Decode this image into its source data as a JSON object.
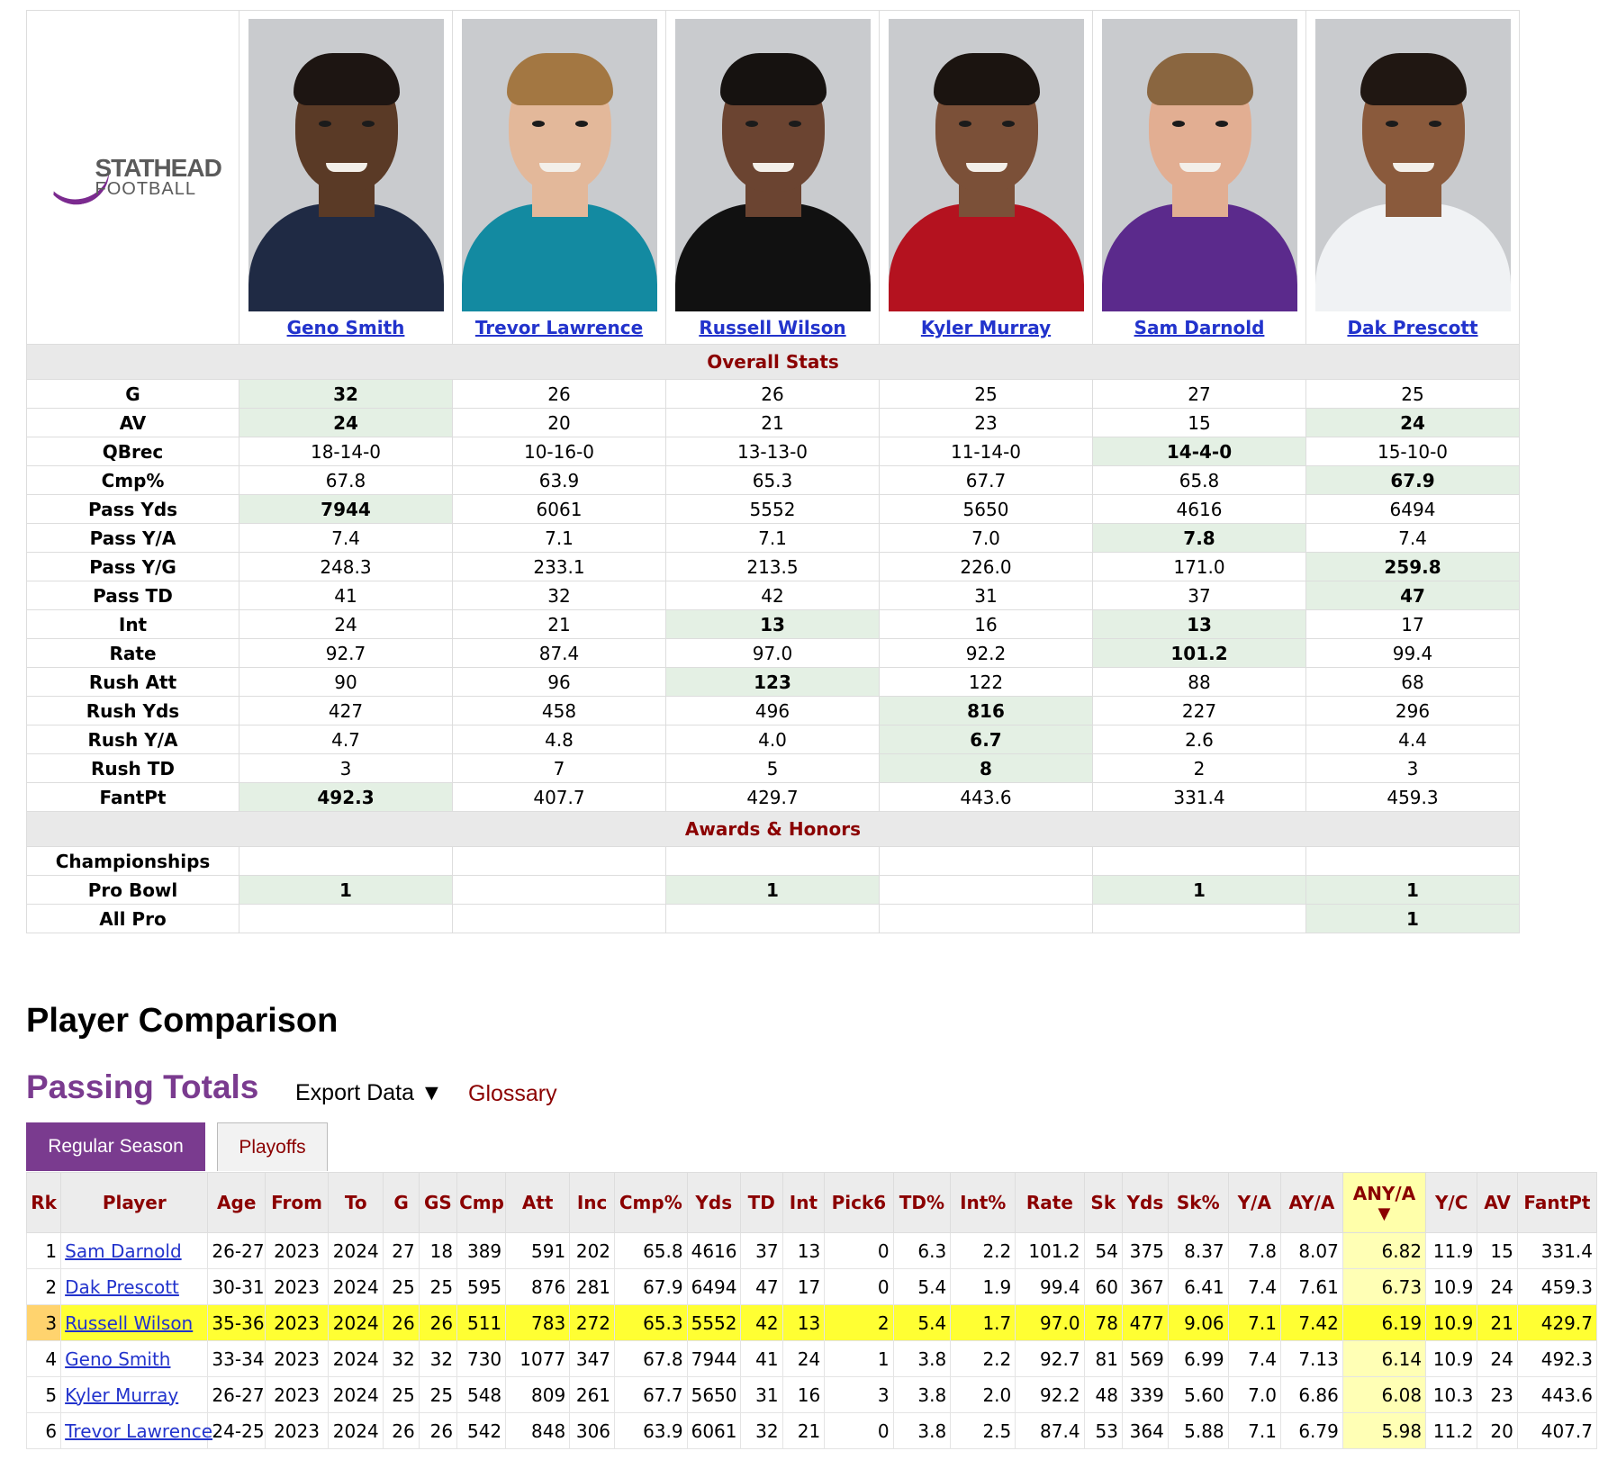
{
  "logo": {
    "line1": "STATHEAD",
    "line2": "FOOTBALL"
  },
  "players": [
    {
      "name": "Geno Smith",
      "colors": {
        "skin": "#5a3a26",
        "hair": "#1d1512",
        "jersey": "#1f2a44"
      }
    },
    {
      "name": "Trevor Lawrence",
      "colors": {
        "skin": "#e3b89a",
        "hair": "#a37742",
        "jersey": "#138aa1"
      }
    },
    {
      "name": "Russell Wilson",
      "colors": {
        "skin": "#6b4431",
        "hair": "#161210",
        "jersey": "#111111"
      }
    },
    {
      "name": "Kyler Murray",
      "colors": {
        "skin": "#7b5038",
        "hair": "#1b1410",
        "jersey": "#b4121f"
      }
    },
    {
      "name": "Sam Darnold",
      "colors": {
        "skin": "#e2ae92",
        "hair": "#8a6640",
        "jersey": "#5b2a8c"
      }
    },
    {
      "name": "Dak Prescott",
      "colors": {
        "skin": "#8a5a3c",
        "hair": "#201712",
        "jersey": "#f0f2f4"
      }
    }
  ],
  "overall": {
    "title": "Overall Stats",
    "rows": [
      {
        "label": "G",
        "values": [
          "32",
          "26",
          "26",
          "25",
          "27",
          "25"
        ],
        "best": [
          0
        ]
      },
      {
        "label": "AV",
        "values": [
          "24",
          "20",
          "21",
          "23",
          "15",
          "24"
        ],
        "best": [
          0,
          5
        ]
      },
      {
        "label": "QBrec",
        "values": [
          "18-14-0",
          "10-16-0",
          "13-13-0",
          "11-14-0",
          "14-4-0",
          "15-10-0"
        ],
        "best": [
          4
        ]
      },
      {
        "label": "Cmp%",
        "values": [
          "67.8",
          "63.9",
          "65.3",
          "67.7",
          "65.8",
          "67.9"
        ],
        "best": [
          5
        ]
      },
      {
        "label": "Pass Yds",
        "values": [
          "7944",
          "6061",
          "5552",
          "5650",
          "4616",
          "6494"
        ],
        "best": [
          0
        ]
      },
      {
        "label": "Pass Y/A",
        "values": [
          "7.4",
          "7.1",
          "7.1",
          "7.0",
          "7.8",
          "7.4"
        ],
        "best": [
          4
        ]
      },
      {
        "label": "Pass Y/G",
        "values": [
          "248.3",
          "233.1",
          "213.5",
          "226.0",
          "171.0",
          "259.8"
        ],
        "best": [
          5
        ]
      },
      {
        "label": "Pass TD",
        "values": [
          "41",
          "32",
          "42",
          "31",
          "37",
          "47"
        ],
        "best": [
          5
        ]
      },
      {
        "label": "Int",
        "values": [
          "24",
          "21",
          "13",
          "16",
          "13",
          "17"
        ],
        "best": [
          2,
          4
        ]
      },
      {
        "label": "Rate",
        "values": [
          "92.7",
          "87.4",
          "97.0",
          "92.2",
          "101.2",
          "99.4"
        ],
        "best": [
          4
        ]
      },
      {
        "label": "Rush Att",
        "values": [
          "90",
          "96",
          "123",
          "122",
          "88",
          "68"
        ],
        "best": [
          2
        ]
      },
      {
        "label": "Rush Yds",
        "values": [
          "427",
          "458",
          "496",
          "816",
          "227",
          "296"
        ],
        "best": [
          3
        ]
      },
      {
        "label": "Rush Y/A",
        "values": [
          "4.7",
          "4.8",
          "4.0",
          "6.7",
          "2.6",
          "4.4"
        ],
        "best": [
          3
        ]
      },
      {
        "label": "Rush TD",
        "values": [
          "3",
          "7",
          "5",
          "8",
          "2",
          "3"
        ],
        "best": [
          3
        ]
      },
      {
        "label": "FantPt",
        "values": [
          "492.3",
          "407.7",
          "429.7",
          "443.6",
          "331.4",
          "459.3"
        ],
        "best": [
          0
        ]
      }
    ]
  },
  "awards": {
    "title": "Awards & Honors",
    "rows": [
      {
        "label": "Championships",
        "values": [
          "",
          "",
          "",
          "",
          "",
          ""
        ],
        "best": []
      },
      {
        "label": "Pro Bowl",
        "values": [
          "1",
          "",
          "1",
          "",
          "1",
          "1"
        ],
        "best": [
          0,
          2,
          4,
          5
        ]
      },
      {
        "label": "All Pro",
        "values": [
          "",
          "",
          "",
          "",
          "",
          "1"
        ],
        "best": [
          5
        ]
      }
    ]
  },
  "page_heading": "Player Comparison",
  "section_heading": "Passing Totals",
  "export_label": "Export Data ▼",
  "glossary_label": "Glossary",
  "tabs": {
    "regular": "Regular Season",
    "playoffs": "Playoffs"
  },
  "stats_table": {
    "columns": [
      "Rk",
      "Player",
      "Age",
      "From",
      "To",
      "G",
      "GS",
      "Cmp",
      "Att",
      "Inc",
      "Cmp%",
      "Yds",
      "TD",
      "Int",
      "Pick6",
      "TD%",
      "Int%",
      "Rate",
      "Sk",
      "Yds",
      "Sk%",
      "Y/A",
      "AY/A",
      "ANY/A",
      "Y/C",
      "AV",
      "FantPt"
    ],
    "sort_arrow": "▼",
    "rows": [
      [
        "1",
        "Sam Darnold",
        "26-27",
        "2023",
        "2024",
        "27",
        "18",
        "389",
        "591",
        "202",
        "65.8",
        "4616",
        "37",
        "13",
        "0",
        "6.3",
        "2.2",
        "101.2",
        "54",
        "375",
        "8.37",
        "7.8",
        "8.07",
        "6.82",
        "11.9",
        "15",
        "331.4"
      ],
      [
        "2",
        "Dak Prescott",
        "30-31",
        "2023",
        "2024",
        "25",
        "25",
        "595",
        "876",
        "281",
        "67.9",
        "6494",
        "47",
        "17",
        "0",
        "5.4",
        "1.9",
        "99.4",
        "60",
        "367",
        "6.41",
        "7.4",
        "7.61",
        "6.73",
        "10.9",
        "24",
        "459.3"
      ],
      [
        "3",
        "Russell Wilson",
        "35-36",
        "2023",
        "2024",
        "26",
        "26",
        "511",
        "783",
        "272",
        "65.3",
        "5552",
        "42",
        "13",
        "2",
        "5.4",
        "1.7",
        "97.0",
        "78",
        "477",
        "9.06",
        "7.1",
        "7.42",
        "6.19",
        "10.9",
        "21",
        "429.7"
      ],
      [
        "4",
        "Geno Smith",
        "33-34",
        "2023",
        "2024",
        "32",
        "32",
        "730",
        "1077",
        "347",
        "67.8",
        "7944",
        "41",
        "24",
        "1",
        "3.8",
        "2.2",
        "92.7",
        "81",
        "569",
        "6.99",
        "7.4",
        "7.13",
        "6.14",
        "10.9",
        "24",
        "492.3"
      ],
      [
        "5",
        "Kyler Murray",
        "26-27",
        "2023",
        "2024",
        "25",
        "25",
        "548",
        "809",
        "261",
        "67.7",
        "5650",
        "31",
        "16",
        "3",
        "3.8",
        "2.0",
        "92.2",
        "48",
        "339",
        "5.60",
        "7.0",
        "6.86",
        "6.08",
        "10.3",
        "23",
        "443.6"
      ],
      [
        "6",
        "Trevor Lawrence",
        "24-25",
        "2023",
        "2024",
        "26",
        "26",
        "542",
        "848",
        "306",
        "63.9",
        "6061",
        "32",
        "21",
        "0",
        "3.8",
        "2.5",
        "87.4",
        "53",
        "364",
        "5.88",
        "7.1",
        "6.79",
        "5.98",
        "11.2",
        "20",
        "407.7"
      ]
    ],
    "highlight_row": 2
  }
}
